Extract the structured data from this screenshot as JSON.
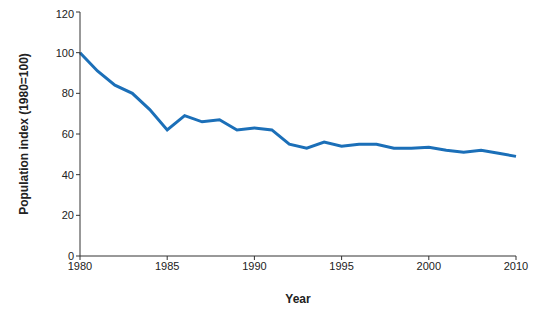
{
  "chart_data": {
    "type": "line",
    "x_label": "Year",
    "y_label": "Population index (1980=100)",
    "categories": [
      "1980",
      null,
      null,
      null,
      null,
      "1985",
      null,
      null,
      null,
      null,
      "1990",
      null,
      null,
      null,
      null,
      "1995",
      null,
      null,
      null,
      null,
      "2000",
      null,
      null,
      null,
      null,
      "2010"
    ],
    "values": [
      100,
      91,
      84,
      80,
      72,
      62,
      69,
      66,
      67,
      62,
      63,
      62,
      55,
      53,
      56,
      54,
      55,
      55,
      53,
      53,
      53.5,
      52,
      51,
      52,
      50.5,
      49
    ],
    "color": "#1b6fb8",
    "ylim": [
      0,
      120
    ],
    "yticks": [
      0,
      20,
      40,
      60,
      80,
      100,
      120
    ],
    "grid": false
  }
}
